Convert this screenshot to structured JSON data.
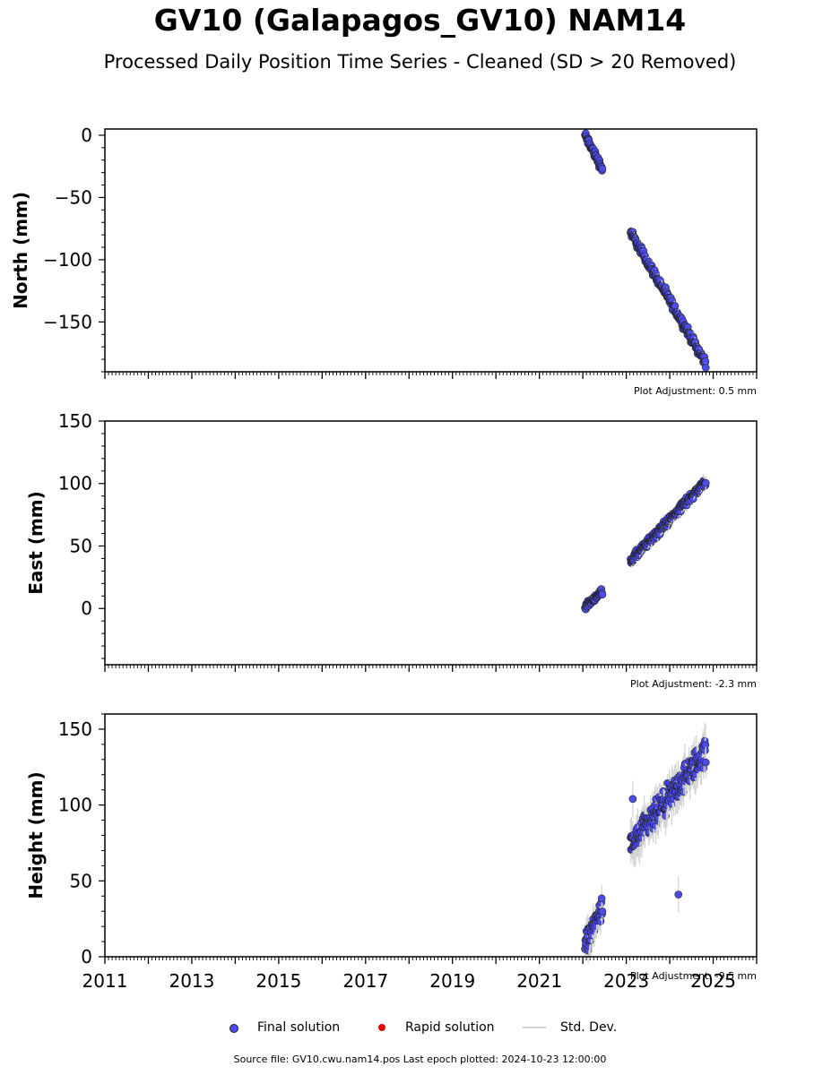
{
  "title": "GV10 (Galapagos_GV10) NAM14",
  "subtitle": "Processed Daily Position Time Series - Cleaned (SD > 20 Removed)",
  "colors": {
    "final_solution": "#4b4bf0",
    "rapid_solution": "#e00000",
    "std_dev": "#d3d3d3",
    "marker_edge": "#222222"
  },
  "chart_data": [
    {
      "type": "scatter",
      "ylabel": "North (mm)",
      "ylim": [
        -190,
        5
      ],
      "yticks": [
        0,
        -50,
        -100,
        -150
      ],
      "ytick_labels": [
        "0",
        "−50",
        "−100",
        "−150"
      ],
      "xlim": [
        2011,
        2026
      ],
      "adjustment": "Plot Adjustment: 0.5 mm",
      "segments": [
        {
          "x": [
            2022.05,
            2022.45
          ],
          "y": [
            0,
            -27
          ],
          "scatter": 3,
          "err": 2
        },
        {
          "x": [
            2023.1,
            2024.83
          ],
          "y": [
            -78,
            -183
          ],
          "scatter": 3,
          "err": 3
        }
      ]
    },
    {
      "type": "scatter",
      "ylabel": "East (mm)",
      "ylim": [
        -45,
        150
      ],
      "yticks": [
        0,
        50,
        100,
        150
      ],
      "ytick_labels": [
        "0",
        "50",
        "100",
        "150"
      ],
      "xlim": [
        2011,
        2026
      ],
      "adjustment": "Plot Adjustment: -2.3 mm",
      "segments": [
        {
          "x": [
            2022.05,
            2022.45
          ],
          "y": [
            1,
            14
          ],
          "scatter": 2,
          "err": 2
        },
        {
          "x": [
            2023.1,
            2024.83
          ],
          "y": [
            38,
            102
          ],
          "scatter": 3,
          "err": 4
        }
      ]
    },
    {
      "type": "scatter",
      "ylabel": "Height (mm)",
      "ylim": [
        0,
        160
      ],
      "yticks": [
        0,
        50,
        100,
        150
      ],
      "ytick_labels": [
        "0",
        "50",
        "100",
        "150"
      ],
      "xlim": [
        2011,
        2026
      ],
      "xticks": [
        2011,
        2013,
        2015,
        2017,
        2019,
        2021,
        2023,
        2025
      ],
      "xtick_labels": [
        "2011",
        "2013",
        "2015",
        "2017",
        "2019",
        "2021",
        "2023",
        "2025"
      ],
      "adjustment": "Plot Adjustment: -9.5 mm",
      "segments": [
        {
          "x": [
            2022.05,
            2022.45
          ],
          "y": [
            8,
            32
          ],
          "scatter": 6,
          "err": 8
        },
        {
          "x": [
            2023.1,
            2024.83
          ],
          "y": [
            72,
            135
          ],
          "scatter": 8,
          "err": 10
        }
      ],
      "outliers": [
        {
          "x": 2024.2,
          "y": 41
        },
        {
          "x": 2023.15,
          "y": 104
        }
      ]
    }
  ],
  "legend": {
    "final": "Final solution",
    "rapid": "Rapid solution",
    "std": "Std. Dev."
  },
  "footer": "Source file: GV10.cwu.nam14.pos  Last epoch plotted: 2024-10-23 12:00:00"
}
